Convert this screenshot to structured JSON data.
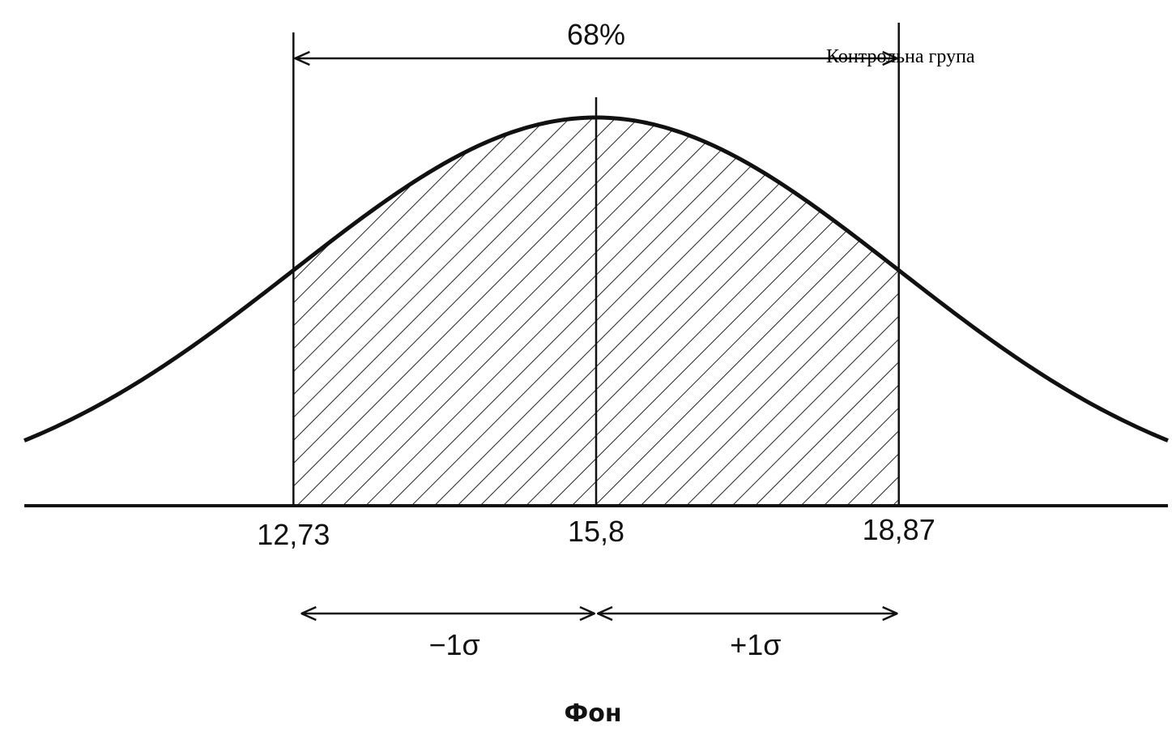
{
  "chart_data": {
    "type": "area",
    "distribution": "normal",
    "title": "Контрольна група",
    "xlabel": "Фон",
    "ylabel": "",
    "mean": 15.8,
    "sigma": 3.07,
    "xlim": [
      10.0,
      21.6
    ],
    "ticks": [
      "12,73",
      "15,8",
      "18,87"
    ],
    "shaded_range": [
      12.73,
      18.87
    ],
    "shaded_label": "68%",
    "sigma_labels": {
      "minus": "−1σ",
      "plus": "+1σ"
    },
    "grid": false,
    "legend": "none",
    "colors": {
      "line": "#111111",
      "hatch": "#222222",
      "background": "#ffffff"
    }
  }
}
